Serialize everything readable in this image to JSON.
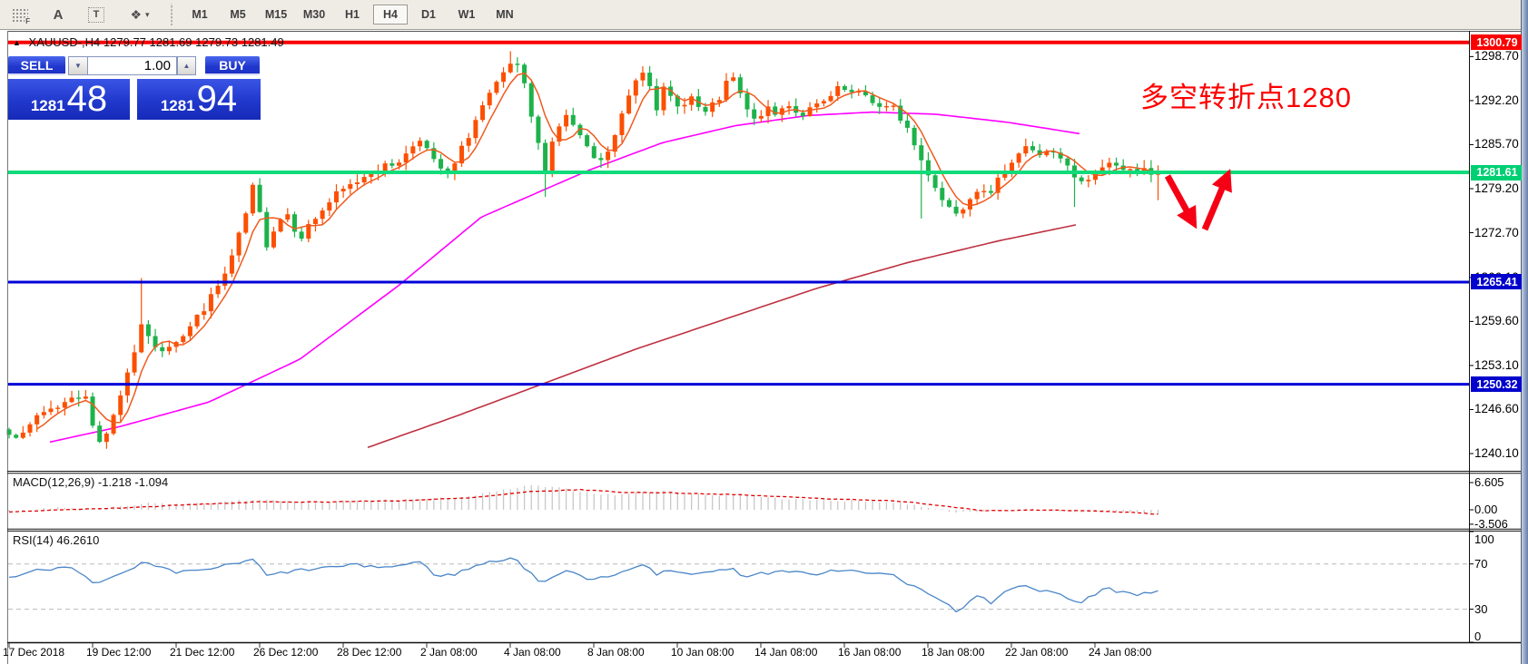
{
  "toolbar": {
    "icon_f": "F",
    "icon_a": "A",
    "icon_t": "T",
    "shapes_glyph": "❖",
    "timeframes": [
      "M1",
      "M5",
      "M15",
      "M30",
      "H1",
      "H4",
      "D1",
      "W1",
      "MN"
    ],
    "active_timeframe": "H4"
  },
  "chart_header": {
    "symbol": "XAUUSD-,H4",
    "ohlc": "1279.77 1281.69 1279.73 1281.49"
  },
  "trade_panel": {
    "sell_label": "SELL",
    "buy_label": "BUY",
    "volume": "1.00",
    "bid_main": "1281",
    "bid_pips": "48",
    "ask_main": "1281",
    "ask_pips": "94",
    "spin_down_glyph": "▼",
    "spin_up_glyph": "▲"
  },
  "annotation": {
    "text": "多空转折点1280",
    "color": "#FE0000"
  },
  "chart_data": {
    "type": "candlestick",
    "symbol": "XAUUSD",
    "timeframe": "H4",
    "ylim": [
      1238,
      1302
    ],
    "bull_color": "#FC4F00",
    "bear_color": "#1DB24A",
    "seed": 7,
    "price_axis_ticks": [
      "1298.70",
      "1292.20",
      "1285.70",
      "1279.20",
      "1272.70",
      "1266.10",
      "1259.60",
      "1253.10",
      "1246.60",
      "1240.10"
    ],
    "price_levels": [
      {
        "label": "1300.79",
        "price": 1300.79,
        "color": "#F80000",
        "badge": "#FA0000",
        "width": 4
      },
      {
        "label": "1281.61",
        "price": 1281.61,
        "color": "#0FDB7A",
        "badge": "#00CF73",
        "width": 4
      },
      {
        "label": "1265.41",
        "price": 1265.41,
        "color": "#0000D8",
        "badge": "#0202CC",
        "width": 3
      },
      {
        "label": "1250.32",
        "price": 1250.32,
        "color": "#0000D8",
        "badge": "#0202CC",
        "width": 3
      }
    ],
    "candle_close_anchors": [
      [
        10,
        1243.5
      ],
      [
        25,
        1242.5
      ],
      [
        42,
        1246
      ],
      [
        60,
        1247
      ],
      [
        78,
        1248
      ],
      [
        95,
        1249
      ],
      [
        106,
        1241
      ],
      [
        120,
        1244
      ],
      [
        138,
        1251
      ],
      [
        152,
        1257
      ],
      [
        158,
        1259.5
      ],
      [
        172,
        1255
      ],
      [
        205,
        1258
      ],
      [
        232,
        1263
      ],
      [
        250,
        1267
      ],
      [
        268,
        1274
      ],
      [
        282,
        1281
      ],
      [
        290,
        1270
      ],
      [
        300,
        1273
      ],
      [
        315,
        1276
      ],
      [
        330,
        1272
      ],
      [
        348,
        1275
      ],
      [
        368,
        1278
      ],
      [
        390,
        1280
      ],
      [
        410,
        1282
      ],
      [
        428,
        1282.5
      ],
      [
        446,
        1284
      ],
      [
        462,
        1287
      ],
      [
        478,
        1283
      ],
      [
        495,
        1281
      ],
      [
        512,
        1286
      ],
      [
        530,
        1291
      ],
      [
        550,
        1295
      ],
      [
        566,
        1298.3
      ],
      [
        578,
        1294
      ],
      [
        590,
        1287
      ],
      [
        600,
        1282
      ],
      [
        612,
        1288
      ],
      [
        625,
        1290
      ],
      [
        638,
        1287
      ],
      [
        650,
        1284
      ],
      [
        662,
        1283
      ],
      [
        675,
        1286
      ],
      [
        690,
        1292
      ],
      [
        705,
        1297
      ],
      [
        714,
        1296
      ],
      [
        722,
        1291
      ],
      [
        732,
        1294
      ],
      [
        745,
        1291
      ],
      [
        760,
        1293
      ],
      [
        775,
        1290
      ],
      [
        790,
        1292
      ],
      [
        806,
        1296
      ],
      [
        818,
        1292
      ],
      [
        830,
        1289
      ],
      [
        842,
        1291
      ],
      [
        855,
        1290
      ],
      [
        868,
        1292
      ],
      [
        880,
        1290
      ],
      [
        895,
        1291
      ],
      [
        910,
        1292
      ],
      [
        925,
        1294
      ],
      [
        940,
        1293
      ],
      [
        955,
        1293
      ],
      [
        970,
        1291
      ],
      [
        985,
        1291
      ],
      [
        1000,
        1288
      ],
      [
        1012,
        1284
      ],
      [
        1025,
        1281
      ],
      [
        1040,
        1277
      ],
      [
        1055,
        1275.8
      ],
      [
        1068,
        1278
      ],
      [
        1080,
        1280
      ],
      [
        1092,
        1278
      ],
      [
        1105,
        1282
      ],
      [
        1118,
        1284
      ],
      [
        1130,
        1285.5
      ],
      [
        1142,
        1284
      ],
      [
        1152,
        1285
      ],
      [
        1162,
        1284
      ],
      [
        1172,
        1283
      ],
      [
        1182,
        1281
      ],
      [
        1192,
        1279.8
      ],
      [
        1202,
        1281
      ],
      [
        1212,
        1282.5
      ],
      [
        1222,
        1283
      ],
      [
        1232,
        1282
      ],
      [
        1242,
        1283
      ],
      [
        1252,
        1281
      ],
      [
        1262,
        1282
      ],
      [
        1270,
        1280.5
      ],
      [
        1277,
        1281.49
      ]
    ],
    "wick_overrides": [
      {
        "i": 19,
        "high": 1266
      },
      {
        "i": 72,
        "high": 1299.5
      },
      {
        "i": 77,
        "low": 1278
      },
      {
        "i": 131,
        "low": 1274.8
      },
      {
        "i": 153,
        "low": 1276.5
      },
      {
        "i": 165,
        "low": 1277.5
      }
    ],
    "last_close": 1281.49,
    "ma_fast": {
      "period": 5,
      "color": "#F05A1E"
    },
    "ma_mid": {
      "color": "#FF00FF",
      "anchors": [
        [
          55,
          1241.8
        ],
        [
          130,
          1244
        ],
        [
          230,
          1247.7
        ],
        [
          330,
          1254
        ],
        [
          440,
          1265
        ],
        [
          530,
          1275
        ],
        [
          650,
          1282
        ],
        [
          730,
          1286
        ],
        [
          810,
          1288.5
        ],
        [
          890,
          1290
        ],
        [
          960,
          1290.5
        ],
        [
          1030,
          1290.2
        ],
        [
          1110,
          1289
        ],
        [
          1190,
          1287.3
        ]
      ]
    },
    "ma_slow": {
      "color": "#BE3040",
      "anchors": [
        [
          405,
          1241
        ],
        [
          500,
          1245.5
        ],
        [
          600,
          1250.5
        ],
        [
          700,
          1255.5
        ],
        [
          800,
          1260
        ],
        [
          900,
          1264.5
        ],
        [
          1000,
          1268.3
        ],
        [
          1100,
          1271.5
        ],
        [
          1190,
          1274
        ]
      ]
    },
    "macd": {
      "label": "MACD(12,26,9) -1.218 -1.094",
      "hist_color": "#C8C8C8",
      "signal_color": "#E00000",
      "axis_labels": [
        "6.605",
        "0.00",
        "-3.506"
      ],
      "axis_values": [
        6.605,
        0,
        -3.506
      ],
      "hist_anchors": [
        [
          10,
          -0.4
        ],
        [
          40,
          0.2
        ],
        [
          70,
          0.5
        ],
        [
          106,
          0.1
        ],
        [
          140,
          0.9
        ],
        [
          165,
          1.6
        ],
        [
          205,
          1.4
        ],
        [
          245,
          1.9
        ],
        [
          285,
          2.6
        ],
        [
          310,
          2.0
        ],
        [
          350,
          1.8
        ],
        [
          395,
          2.2
        ],
        [
          440,
          2.5
        ],
        [
          480,
          2.7
        ],
        [
          520,
          3.4
        ],
        [
          555,
          4.8
        ],
        [
          585,
          5.9
        ],
        [
          615,
          5.3
        ],
        [
          645,
          4.3
        ],
        [
          675,
          3.5
        ],
        [
          705,
          4.3
        ],
        [
          730,
          4.5
        ],
        [
          760,
          3.9
        ],
        [
          790,
          3.5
        ],
        [
          820,
          3.6
        ],
        [
          850,
          2.9
        ],
        [
          880,
          2.5
        ],
        [
          910,
          2.3
        ],
        [
          940,
          2.2
        ],
        [
          970,
          2.0
        ],
        [
          1000,
          1.4
        ],
        [
          1022,
          0.6
        ],
        [
          1045,
          -0.3
        ],
        [
          1065,
          -0.7
        ],
        [
          1085,
          -0.4
        ],
        [
          1105,
          0.0
        ],
        [
          1125,
          0.2
        ],
        [
          1145,
          0.1
        ],
        [
          1165,
          -0.2
        ],
        [
          1185,
          -0.5
        ],
        [
          1205,
          -0.4
        ],
        [
          1225,
          -0.5
        ],
        [
          1245,
          -0.7
        ],
        [
          1262,
          -0.9
        ],
        [
          1277,
          -1.218
        ]
      ],
      "signal_anchors": [
        [
          10,
          -0.5
        ],
        [
          70,
          0.0
        ],
        [
          140,
          0.5
        ],
        [
          205,
          1.2
        ],
        [
          285,
          1.9
        ],
        [
          350,
          1.9
        ],
        [
          440,
          2.2
        ],
        [
          520,
          2.9
        ],
        [
          585,
          4.4
        ],
        [
          640,
          4.9
        ],
        [
          690,
          4.2
        ],
        [
          730,
          4.2
        ],
        [
          790,
          3.8
        ],
        [
          850,
          3.3
        ],
        [
          910,
          2.7
        ],
        [
          970,
          2.3
        ],
        [
          1010,
          1.7
        ],
        [
          1045,
          0.8
        ],
        [
          1085,
          -0.2
        ],
        [
          1125,
          -0.1
        ],
        [
          1165,
          -0.15
        ],
        [
          1205,
          -0.35
        ],
        [
          1245,
          -0.6
        ],
        [
          1277,
          -1.094
        ]
      ]
    },
    "rsi": {
      "label": "RSI(14) 46.2610",
      "color": "#4A86C8",
      "current": 46.261,
      "levels": [
        70,
        30
      ],
      "axis_labels": [
        "100",
        "70",
        "30",
        "0"
      ],
      "axis_values": [
        100,
        70,
        30,
        0
      ],
      "anchors": [
        [
          10,
          58
        ],
        [
          45,
          65
        ],
        [
          80,
          68
        ],
        [
          106,
          52
        ],
        [
          140,
          63
        ],
        [
          158,
          71
        ],
        [
          195,
          62
        ],
        [
          240,
          67
        ],
        [
          282,
          74
        ],
        [
          292,
          59
        ],
        [
          315,
          63
        ],
        [
          350,
          66
        ],
        [
          390,
          69
        ],
        [
          428,
          67
        ],
        [
          462,
          72
        ],
        [
          480,
          60
        ],
        [
          497,
          60
        ],
        [
          530,
          70
        ],
        [
          566,
          76
        ],
        [
          590,
          57
        ],
        [
          600,
          54
        ],
        [
          620,
          64
        ],
        [
          650,
          57
        ],
        [
          675,
          60
        ],
        [
          705,
          70
        ],
        [
          714,
          68
        ],
        [
          722,
          58
        ],
        [
          732,
          64
        ],
        [
          760,
          62
        ],
        [
          790,
          63
        ],
        [
          806,
          68
        ],
        [
          820,
          58
        ],
        [
          842,
          62
        ],
        [
          868,
          63
        ],
        [
          895,
          61
        ],
        [
          925,
          65
        ],
        [
          955,
          62
        ],
        [
          985,
          60
        ],
        [
          1005,
          50
        ],
        [
          1025,
          43
        ],
        [
          1055,
          28
        ],
        [
          1068,
          38
        ],
        [
          1080,
          42
        ],
        [
          1092,
          33
        ],
        [
          1105,
          45
        ],
        [
          1118,
          50
        ],
        [
          1130,
          52
        ],
        [
          1142,
          46
        ],
        [
          1152,
          48
        ],
        [
          1162,
          45
        ],
        [
          1172,
          42
        ],
        [
          1182,
          37
        ],
        [
          1192,
          34
        ],
        [
          1202,
          42
        ],
        [
          1212,
          46
        ],
        [
          1222,
          48
        ],
        [
          1232,
          43
        ],
        [
          1242,
          46
        ],
        [
          1252,
          41
        ],
        [
          1262,
          44
        ],
        [
          1270,
          43
        ],
        [
          1277,
          46.261
        ]
      ]
    },
    "time_labels": [
      "17 Dec 2018",
      "19 Dec 12:00",
      "21 Dec 12:00",
      "26 Dec 12:00",
      "28 Dec 12:00",
      "2 Jan 08:00",
      "4 Jan 08:00",
      "8 Jan 08:00",
      "10 Jan 08:00",
      "14 Jan 08:00",
      "16 Jan 08:00",
      "18 Jan 08:00",
      "22 Jan 08:00",
      "24 Jan 08:00"
    ],
    "arrow": {
      "color": "#F50014",
      "segments": [
        [
          1286,
          194,
          1313,
          243
        ],
        [
          1327,
          253,
          1351,
          196
        ]
      ]
    }
  }
}
